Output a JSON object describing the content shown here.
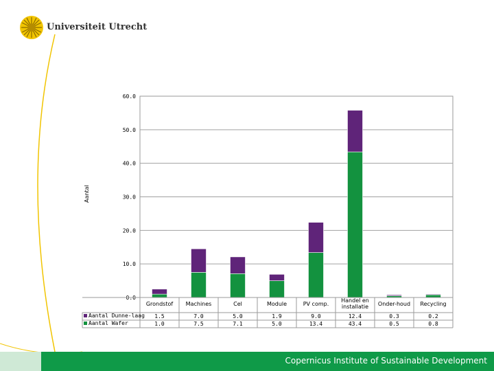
{
  "logo": {
    "text": "Universiteit Utrecht"
  },
  "footer": {
    "text": "Copernicus Institute of Sustainable Development"
  },
  "colors": {
    "wafer": "#13923f",
    "thin": "#5f2479",
    "accent": "#f1c400",
    "footer": "#0f9a48"
  },
  "chart_data": {
    "type": "bar",
    "stacked": true,
    "title": "",
    "xlabel": "",
    "ylabel": "Aantal",
    "ylim": [
      0,
      60
    ],
    "yticks": [
      "0.0",
      "10.0",
      "20.0",
      "30.0",
      "40.0",
      "50.0",
      "60.0"
    ],
    "categories": [
      "Grondstof",
      "Machines",
      "Cel",
      "Module",
      "PV comp.",
      "Handel en installatie",
      "Onder-houd",
      "Recycling"
    ],
    "series": [
      {
        "name": "Aantal Dunne-laag",
        "color": "#5f2479",
        "values": [
          1.5,
          7.0,
          5.0,
          1.9,
          9.0,
          12.4,
          0.3,
          0.2
        ],
        "labels": [
          "1.5",
          "7.0",
          "5.0",
          "1.9",
          "9.0",
          "12.4",
          "0.3",
          "0.2"
        ]
      },
      {
        "name": "Aantal Wafer",
        "color": "#13923f",
        "values": [
          1.0,
          7.5,
          7.1,
          5.0,
          13.4,
          43.4,
          0.5,
          0.8
        ],
        "labels": [
          "1.0",
          "7.5",
          "7.1",
          "5.0",
          "13.4",
          "43.4",
          "0.5",
          "0.8"
        ]
      }
    ],
    "grid": true,
    "legend": "data-table-left"
  }
}
